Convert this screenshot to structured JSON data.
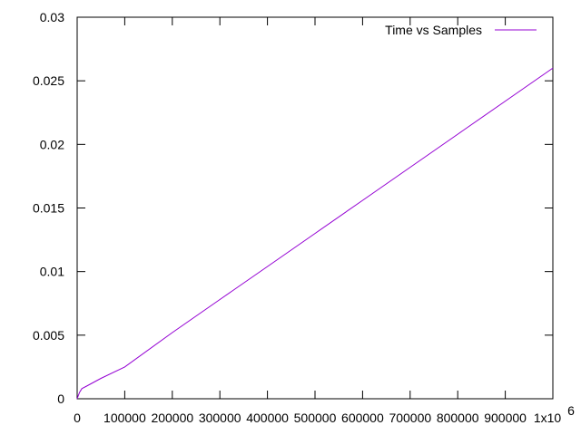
{
  "chart_data": {
    "type": "line",
    "title": "",
    "xlabel": "",
    "ylabel": "",
    "xlim": [
      0,
      1000000
    ],
    "ylim": [
      0,
      0.03
    ],
    "x_tick_labels": [
      "0",
      "100000",
      "200000",
      "300000",
      "400000",
      "500000",
      "600000",
      "700000",
      "800000",
      "900000",
      "1x10"
    ],
    "x_tick_values": [
      0,
      100000,
      200000,
      300000,
      400000,
      500000,
      600000,
      700000,
      800000,
      900000,
      1000000
    ],
    "x_multiplier_exponent": "6",
    "y_tick_labels": [
      "0",
      "0.005",
      "0.01",
      "0.015",
      "0.02",
      "0.025",
      "0.03"
    ],
    "y_tick_values": [
      0,
      0.005,
      0.01,
      0.015,
      0.02,
      0.025,
      0.03
    ],
    "grid": false,
    "legend_position": "top-right",
    "series": [
      {
        "name": "Time vs Samples",
        "color": "#9400d3",
        "x": [
          1000,
          5000,
          10000,
          20000,
          50000,
          100000,
          200000,
          300000,
          400000,
          500000,
          600000,
          700000,
          800000,
          900000,
          1000000
        ],
        "y": [
          0.0001,
          0.0005,
          0.0008,
          0.001,
          0.0016,
          0.0025,
          0.0052,
          0.0078,
          0.0104,
          0.013,
          0.0156,
          0.0182,
          0.0208,
          0.0234,
          0.026
        ]
      }
    ]
  }
}
